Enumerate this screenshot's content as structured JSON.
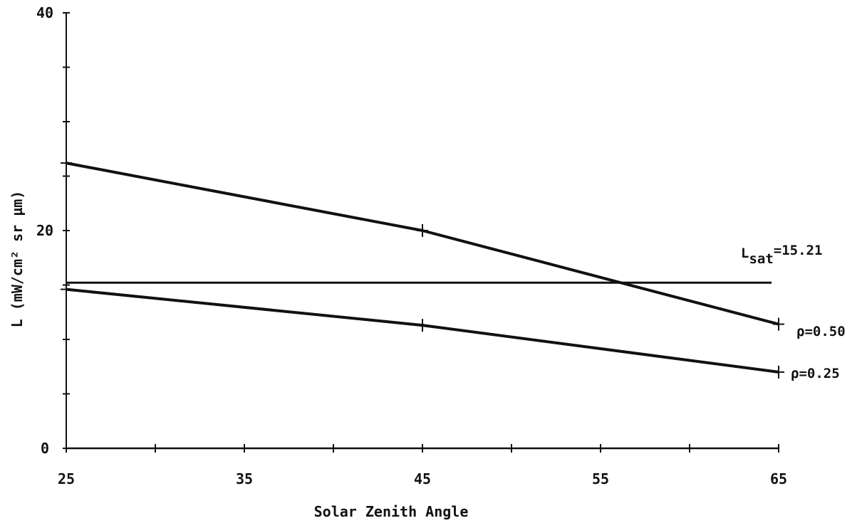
{
  "chart_data": {
    "type": "line",
    "title": "",
    "xlabel": "Solar Zenith Angle",
    "ylabel": "L (mW/cm² sr µm)",
    "xlim": [
      25,
      65
    ],
    "ylim": [
      0,
      40
    ],
    "x_tick_labels": [
      "25",
      "35",
      "45",
      "55",
      "65"
    ],
    "x_tick_values": [
      25,
      35,
      45,
      55,
      65
    ],
    "x_minor_ticks": [
      30,
      40,
      50,
      60
    ],
    "y_tick_labels": [
      "0",
      "20",
      "40"
    ],
    "y_tick_values": [
      0,
      20,
      40
    ],
    "y_minor_ticks": [
      5,
      10,
      15,
      25,
      30,
      35
    ],
    "grid": false,
    "legend": "none",
    "color": "#111111",
    "series": [
      {
        "name": "ρ=0.50",
        "x": [
          25,
          45,
          65
        ],
        "y": [
          26.2,
          20.0,
          11.4
        ]
      },
      {
        "name": "ρ=0.25",
        "x": [
          25,
          45,
          65
        ],
        "y": [
          14.6,
          11.3,
          7.0
        ]
      }
    ],
    "reference_line": {
      "label_main": "L",
      "label_sub": "sat",
      "label_value": "=15.21",
      "y": 15.21
    }
  }
}
